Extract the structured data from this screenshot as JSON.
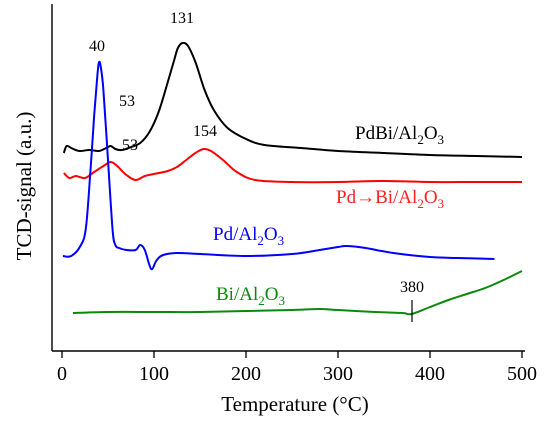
{
  "chart_data": {
    "type": "line",
    "title": "",
    "xlabel": "Temperature (°C)",
    "ylabel": "TCD-signal (a.u.)",
    "xlim": [
      -5,
      500
    ],
    "xticks": [
      0,
      100,
      200,
      300,
      400,
      500
    ],
    "xtick_labels": [
      "0",
      "100",
      "200",
      "300",
      "400",
      "500"
    ],
    "yticks_shown": false,
    "grid": false,
    "legend": "none",
    "series": [
      {
        "name": "PdBi/Al2O3",
        "color": "#000000",
        "points": [
          [
            2,
            153
          ],
          [
            5,
            146
          ],
          [
            10,
            148
          ],
          [
            15,
            150
          ],
          [
            20,
            151
          ],
          [
            30,
            150
          ],
          [
            40,
            151
          ],
          [
            48,
            148
          ],
          [
            53,
            146
          ],
          [
            58,
            149
          ],
          [
            65,
            150
          ],
          [
            75,
            147
          ],
          [
            85,
            143
          ],
          [
            95,
            132
          ],
          [
            105,
            112
          ],
          [
            115,
            82
          ],
          [
            122,
            60
          ],
          [
            126,
            48
          ],
          [
            131,
            43
          ],
          [
            137,
            46
          ],
          [
            145,
            62
          ],
          [
            155,
            90
          ],
          [
            165,
            110
          ],
          [
            180,
            128
          ],
          [
            200,
            139
          ],
          [
            220,
            145
          ],
          [
            260,
            148
          ],
          [
            300,
            151
          ],
          [
            350,
            153
          ],
          [
            400,
            155
          ],
          [
            450,
            156
          ],
          [
            500,
            157
          ]
        ]
      },
      {
        "name": "Pd→Bi/Al2O3",
        "color": "#ff0000",
        "points": [
          [
            2,
            173
          ],
          [
            8,
            178
          ],
          [
            15,
            176
          ],
          [
            25,
            178
          ],
          [
            35,
            172
          ],
          [
            45,
            166
          ],
          [
            53,
            162
          ],
          [
            60,
            166
          ],
          [
            70,
            175
          ],
          [
            80,
            180
          ],
          [
            90,
            176
          ],
          [
            100,
            174
          ],
          [
            115,
            171
          ],
          [
            125,
            167
          ],
          [
            135,
            160
          ],
          [
            145,
            153
          ],
          [
            154,
            149
          ],
          [
            162,
            151
          ],
          [
            175,
            160
          ],
          [
            190,
            172
          ],
          [
            210,
            180
          ],
          [
            250,
            182
          ],
          [
            300,
            182
          ],
          [
            350,
            181
          ],
          [
            400,
            182
          ],
          [
            450,
            182
          ],
          [
            500,
            182
          ]
        ]
      },
      {
        "name": "Pd/Al2O3",
        "color": "#0000ff",
        "points": [
          [
            1,
            256
          ],
          [
            10,
            256
          ],
          [
            20,
            246
          ],
          [
            26,
            228
          ],
          [
            31,
            170
          ],
          [
            35,
            115
          ],
          [
            38,
            80
          ],
          [
            40,
            63
          ],
          [
            42,
            66
          ],
          [
            45,
            90
          ],
          [
            50,
            160
          ],
          [
            55,
            230
          ],
          [
            58,
            245
          ],
          [
            62,
            248
          ],
          [
            70,
            250
          ],
          [
            80,
            250
          ],
          [
            85,
            245
          ],
          [
            90,
            250
          ],
          [
            95,
            265
          ],
          [
            98,
            269
          ],
          [
            103,
            260
          ],
          [
            110,
            255
          ],
          [
            125,
            253
          ],
          [
            150,
            254
          ],
          [
            200,
            256
          ],
          [
            250,
            254
          ],
          [
            280,
            250
          ],
          [
            300,
            247
          ],
          [
            310,
            246
          ],
          [
            330,
            248
          ],
          [
            360,
            253
          ],
          [
            400,
            257
          ],
          [
            430,
            258
          ],
          [
            470,
            259
          ]
        ]
      },
      {
        "name": "Bi/Al2O3",
        "color": "#0a8a0a",
        "points": [
          [
            12,
            313
          ],
          [
            50,
            312
          ],
          [
            100,
            312
          ],
          [
            150,
            312
          ],
          [
            200,
            311
          ],
          [
            250,
            310
          ],
          [
            280,
            309
          ],
          [
            300,
            310
          ],
          [
            340,
            312
          ],
          [
            370,
            313
          ],
          [
            380,
            314
          ],
          [
            400,
            307
          ],
          [
            420,
            300
          ],
          [
            440,
            294
          ],
          [
            460,
            288
          ],
          [
            480,
            280
          ],
          [
            500,
            271
          ]
        ]
      }
    ],
    "annotations": {
      "peak_131": "131",
      "peak_40": "40",
      "peak_53_black": "53",
      "peak_53_red": "53",
      "peak_154": "154",
      "peak_380": "380"
    },
    "series_labels": {
      "pdbi": [
        "PdBi/Al",
        "2",
        "O",
        "3"
      ],
      "pd_bi": [
        "Pd→Bi/Al",
        "2",
        "O",
        "3"
      ],
      "pd": [
        "Pd/Al",
        "2",
        "O",
        "3"
      ],
      "bi": [
        "Bi/Al",
        "2",
        "O",
        "3"
      ]
    }
  }
}
